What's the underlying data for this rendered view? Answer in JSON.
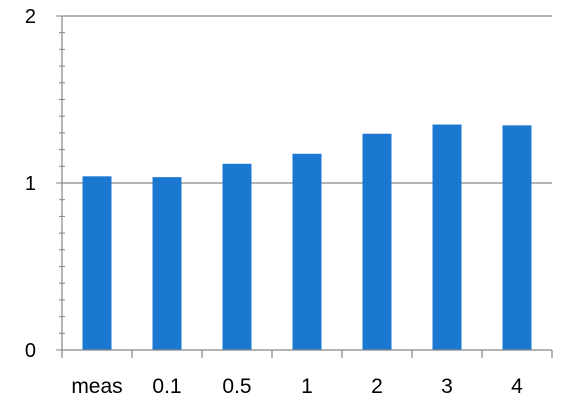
{
  "chart_data": {
    "type": "bar",
    "categories": [
      "meas",
      "0.1",
      "0.5",
      "1",
      "2",
      "3",
      "4"
    ],
    "values": [
      1.04,
      1.035,
      1.115,
      1.175,
      1.295,
      1.35,
      1.345
    ],
    "ylim": [
      0,
      2
    ],
    "yticks": [
      "0",
      "1",
      "2"
    ],
    "grid": "horizontal major lines at 1 and 2",
    "bar_color": "#1b78d0"
  }
}
